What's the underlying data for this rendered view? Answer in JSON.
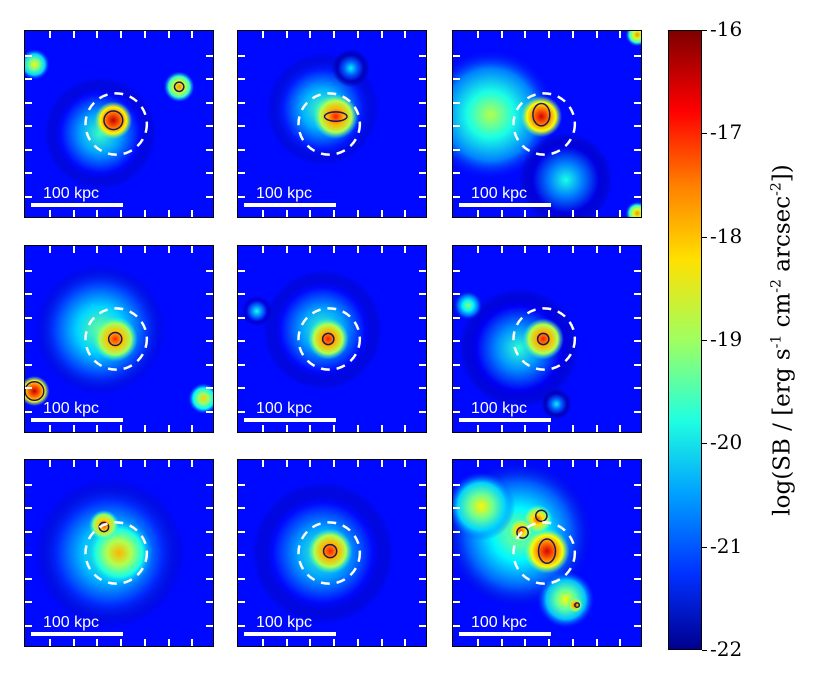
{
  "chart_data": {
    "type": "heatmap",
    "grid": {
      "rows": 3,
      "cols": 3
    },
    "scalebar_label": "100 kpc",
    "colorbar": {
      "min": -22,
      "max": -16,
      "ticks": [
        -16,
        -17,
        -18,
        -19,
        -20,
        -21,
        -22
      ],
      "tick_labels": [
        "-16",
        "-17",
        "-18",
        "-19",
        "-20",
        "-21",
        "-22"
      ],
      "label_parts": [
        "log(SB / [erg s",
        "-1",
        " cm",
        "-2",
        " arcsec",
        "-2",
        "])"
      ],
      "colormap": "jet"
    },
    "panels": [
      {
        "blobs": [
          {
            "x": 0.47,
            "y": 0.48,
            "r": 0.1,
            "v": -16.4
          },
          {
            "x": 0.82,
            "y": 0.3,
            "r": 0.08,
            "v": -17.6
          },
          {
            "x": 0.05,
            "y": 0.18,
            "r": 0.08,
            "v": -18.2
          },
          {
            "x": 0.4,
            "y": 0.55,
            "r": 0.3,
            "v": -19.4
          }
        ],
        "contours": [
          {
            "x": 0.47,
            "y": 0.48,
            "rx": 0.05,
            "ry": 0.05
          },
          {
            "x": 0.82,
            "y": 0.3,
            "rx": 0.025,
            "ry": 0.025
          }
        ]
      },
      {
        "blobs": [
          {
            "x": 0.52,
            "y": 0.46,
            "r": 0.12,
            "v": -16.9
          },
          {
            "x": 0.45,
            "y": 0.42,
            "r": 0.3,
            "v": -19.3
          },
          {
            "x": 0.6,
            "y": 0.2,
            "r": 0.1,
            "v": -19.8
          }
        ],
        "contours": [
          {
            "x": 0.52,
            "y": 0.46,
            "rx": 0.06,
            "ry": 0.025
          }
        ]
      },
      {
        "blobs": [
          {
            "x": 0.47,
            "y": 0.46,
            "r": 0.11,
            "v": -16.5
          },
          {
            "x": 0.2,
            "y": 0.45,
            "r": 0.35,
            "v": -18.7
          },
          {
            "x": 0.6,
            "y": 0.8,
            "r": 0.25,
            "v": -19.6
          },
          {
            "x": 0.98,
            "y": 0.02,
            "r": 0.06,
            "v": -17.6
          },
          {
            "x": 0.98,
            "y": 0.98,
            "r": 0.06,
            "v": -17.6
          }
        ],
        "contours": [
          {
            "x": 0.47,
            "y": 0.45,
            "rx": 0.045,
            "ry": 0.06
          }
        ]
      },
      {
        "blobs": [
          {
            "x": 0.48,
            "y": 0.5,
            "r": 0.12,
            "v": -17.0
          },
          {
            "x": 0.4,
            "y": 0.45,
            "r": 0.35,
            "v": -19.1
          },
          {
            "x": 0.05,
            "y": 0.78,
            "r": 0.08,
            "v": -16.4
          },
          {
            "x": 0.95,
            "y": 0.82,
            "r": 0.08,
            "v": -18.0
          }
        ],
        "contours": [
          {
            "x": 0.48,
            "y": 0.5,
            "rx": 0.035,
            "ry": 0.035
          },
          {
            "x": 0.05,
            "y": 0.78,
            "rx": 0.05,
            "ry": 0.05
          }
        ]
      },
      {
        "blobs": [
          {
            "x": 0.48,
            "y": 0.5,
            "r": 0.11,
            "v": -16.9
          },
          {
            "x": 0.45,
            "y": 0.45,
            "r": 0.32,
            "v": -19.4
          },
          {
            "x": 0.1,
            "y": 0.35,
            "r": 0.08,
            "v": -19.6
          }
        ],
        "contours": [
          {
            "x": 0.48,
            "y": 0.5,
            "rx": 0.03,
            "ry": 0.03
          }
        ]
      },
      {
        "blobs": [
          {
            "x": 0.48,
            "y": 0.5,
            "r": 0.11,
            "v": -16.9
          },
          {
            "x": 0.35,
            "y": 0.55,
            "r": 0.32,
            "v": -19.5
          },
          {
            "x": 0.08,
            "y": 0.32,
            "r": 0.08,
            "v": -18.9
          },
          {
            "x": 0.55,
            "y": 0.85,
            "r": 0.08,
            "v": -19.8
          }
        ],
        "contours": [
          {
            "x": 0.48,
            "y": 0.5,
            "rx": 0.03,
            "ry": 0.03
          }
        ]
      },
      {
        "blobs": [
          {
            "x": 0.5,
            "y": 0.5,
            "r": 0.18,
            "v": -17.8
          },
          {
            "x": 0.42,
            "y": 0.35,
            "r": 0.08,
            "v": -17.1
          },
          {
            "x": 0.45,
            "y": 0.5,
            "r": 0.4,
            "v": -19.2
          }
        ],
        "contours": [
          {
            "x": 0.42,
            "y": 0.36,
            "rx": 0.025,
            "ry": 0.025
          }
        ]
      },
      {
        "blobs": [
          {
            "x": 0.49,
            "y": 0.49,
            "r": 0.12,
            "v": -16.9
          },
          {
            "x": 0.45,
            "y": 0.5,
            "r": 0.38,
            "v": -19.4
          }
        ],
        "contours": [
          {
            "x": 0.49,
            "y": 0.49,
            "rx": 0.035,
            "ry": 0.035
          }
        ]
      },
      {
        "blobs": [
          {
            "x": 0.5,
            "y": 0.49,
            "r": 0.12,
            "v": -16.5
          },
          {
            "x": 0.45,
            "y": 0.32,
            "r": 0.08,
            "v": -17.2
          },
          {
            "x": 0.36,
            "y": 0.38,
            "r": 0.07,
            "v": -17.2
          },
          {
            "x": 0.15,
            "y": 0.25,
            "r": 0.18,
            "v": -18.2
          },
          {
            "x": 0.6,
            "y": 0.75,
            "r": 0.15,
            "v": -18.3
          },
          {
            "x": 0.35,
            "y": 0.4,
            "r": 0.4,
            "v": -18.9
          },
          {
            "x": 0.65,
            "y": 0.78,
            "r": 0.04,
            "v": -17.0
          }
        ],
        "contours": [
          {
            "x": 0.5,
            "y": 0.49,
            "rx": 0.045,
            "ry": 0.065
          },
          {
            "x": 0.47,
            "y": 0.3,
            "rx": 0.03,
            "ry": 0.03
          },
          {
            "x": 0.37,
            "y": 0.39,
            "rx": 0.03,
            "ry": 0.03
          },
          {
            "x": 0.66,
            "y": 0.78,
            "rx": 0.012,
            "ry": 0.012
          }
        ]
      }
    ]
  }
}
